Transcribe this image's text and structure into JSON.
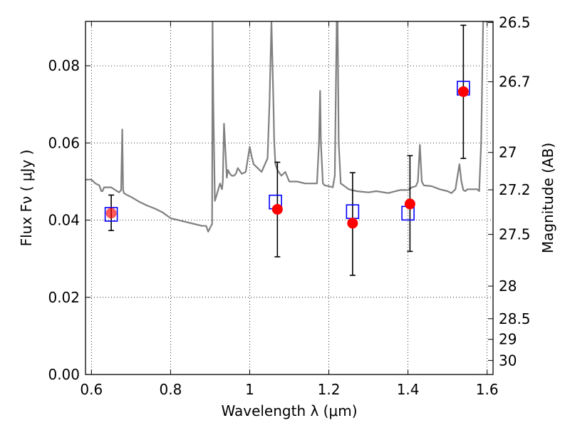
{
  "chart_data": {
    "type": "scatter",
    "xlabel": "Wavelength  λ (μm)",
    "ylabel": "Flux  Fν  ( μJy )",
    "ylabel_right": "Magnitude (AB)",
    "xlim": [
      0.585,
      1.615
    ],
    "ylim": [
      0.0,
      0.0915
    ],
    "x_ticks": [
      0.6,
      0.8,
      1.0,
      1.2,
      1.4,
      1.6
    ],
    "x_tick_labels": [
      "0.6",
      "0.8",
      "1",
      "1.2",
      "1.4",
      "1.6"
    ],
    "y_ticks": [
      0.0,
      0.02,
      0.04,
      0.06,
      0.08
    ],
    "y_tick_labels": [
      "0.00",
      "0.02",
      "0.04",
      "0.06",
      "0.08"
    ],
    "right_ticks": [
      {
        "label": "26.5",
        "mag": 26.5
      },
      {
        "label": "26.7",
        "mag": 26.7
      },
      {
        "label": "27",
        "mag": 27.0
      },
      {
        "label": "27.2",
        "mag": 27.2
      },
      {
        "label": "27.5",
        "mag": 27.5
      },
      {
        "label": "28",
        "mag": 28.0
      },
      {
        "label": "28.5",
        "mag": 28.5
      },
      {
        "label": "29",
        "mag": 29.0
      },
      {
        "label": "30",
        "mag": 30.0
      }
    ],
    "grid": true,
    "grid_style": "dotted",
    "colors": {
      "model": "#808080",
      "observed": "#ff0000",
      "synthetic": "#0000ff",
      "errorbar": "#000000"
    },
    "series": [
      {
        "kind": "model_spectrum",
        "x": [
          0.585,
          0.6,
          0.61,
          0.62,
          0.625,
          0.628,
          0.632,
          0.64,
          0.65,
          0.66,
          0.665,
          0.67,
          0.675,
          0.678,
          0.68,
          0.682,
          0.685,
          0.7,
          0.72,
          0.74,
          0.76,
          0.78,
          0.8,
          0.82,
          0.84,
          0.86,
          0.88,
          0.89,
          0.895,
          0.9,
          0.905,
          0.906,
          0.908,
          0.912,
          0.915,
          0.925,
          0.93,
          0.932,
          0.935,
          0.94,
          0.942,
          0.945,
          0.95,
          0.955,
          0.96,
          0.965,
          0.97,
          0.98,
          0.99,
          1.0,
          1.005,
          1.01,
          1.02,
          1.03,
          1.045,
          1.05,
          1.055,
          1.06,
          1.062,
          1.065,
          1.07,
          1.08,
          1.09,
          1.1,
          1.12,
          1.14,
          1.16,
          1.17,
          1.175,
          1.178,
          1.18,
          1.185,
          1.19,
          1.2,
          1.21,
          1.215,
          1.22,
          1.222,
          1.225,
          1.23,
          1.24,
          1.25,
          1.27,
          1.3,
          1.32,
          1.35,
          1.38,
          1.4,
          1.41,
          1.42,
          1.425,
          1.43,
          1.435,
          1.44,
          1.46,
          1.48,
          1.5,
          1.51,
          1.52,
          1.53,
          1.535,
          1.54,
          1.545,
          1.55,
          1.56,
          1.575,
          1.58,
          1.585,
          1.59,
          1.6,
          1.615
        ],
        "y": [
          0.0505,
          0.0505,
          0.0495,
          0.049,
          0.0475,
          0.0475,
          0.0485,
          0.0485,
          0.0485,
          0.0478,
          0.0475,
          0.0472,
          0.0478,
          0.0635,
          0.0478,
          0.047,
          0.0468,
          0.046,
          0.0448,
          0.0438,
          0.043,
          0.042,
          0.0405,
          0.04,
          0.0395,
          0.039,
          0.0385,
          0.0385,
          0.037,
          0.038,
          0.039,
          0.095,
          0.07,
          0.045,
          0.046,
          0.0495,
          0.048,
          0.05,
          0.065,
          0.0555,
          0.051,
          0.053,
          0.052,
          0.0515,
          0.0515,
          0.052,
          0.0535,
          0.052,
          0.0525,
          0.059,
          0.0565,
          0.0545,
          0.0535,
          0.0525,
          0.056,
          0.07,
          0.095,
          0.07,
          0.06,
          0.0545,
          0.053,
          0.0515,
          0.0525,
          0.05,
          0.05,
          0.0495,
          0.0495,
          0.0495,
          0.06,
          0.0735,
          0.06,
          0.0495,
          0.049,
          0.0488,
          0.0485,
          0.0515,
          0.095,
          0.095,
          0.06,
          0.0495,
          0.0488,
          0.048,
          0.0475,
          0.0472,
          0.0475,
          0.047,
          0.0478,
          0.0478,
          0.0485,
          0.0488,
          0.05,
          0.0595,
          0.05,
          0.049,
          0.0488,
          0.048,
          0.0475,
          0.047,
          0.048,
          0.0545,
          0.05,
          0.0478,
          0.0475,
          0.048,
          0.048,
          0.048,
          0.0475,
          0.06,
          0.095,
          0.095,
          0.095
        ]
      },
      {
        "kind": "synthetic_photometry",
        "marker": "open-square",
        "x": [
          0.65,
          1.065,
          1.26,
          1.4,
          1.54
        ],
        "y": [
          0.0415,
          0.0447,
          0.0422,
          0.0418,
          0.0742
        ]
      },
      {
        "kind": "observed_photometry",
        "marker": "filled-circle",
        "x": [
          0.65,
          1.07,
          1.26,
          1.405,
          1.54
        ],
        "y": [
          0.0418,
          0.0428,
          0.0392,
          0.0442,
          0.0733
        ],
        "yerr_low": [
          0.0045,
          0.0123,
          0.0135,
          0.0123,
          0.0173
        ],
        "yerr_high": [
          0.0047,
          0.0122,
          0.0131,
          0.0125,
          0.0172
        ]
      }
    ]
  }
}
